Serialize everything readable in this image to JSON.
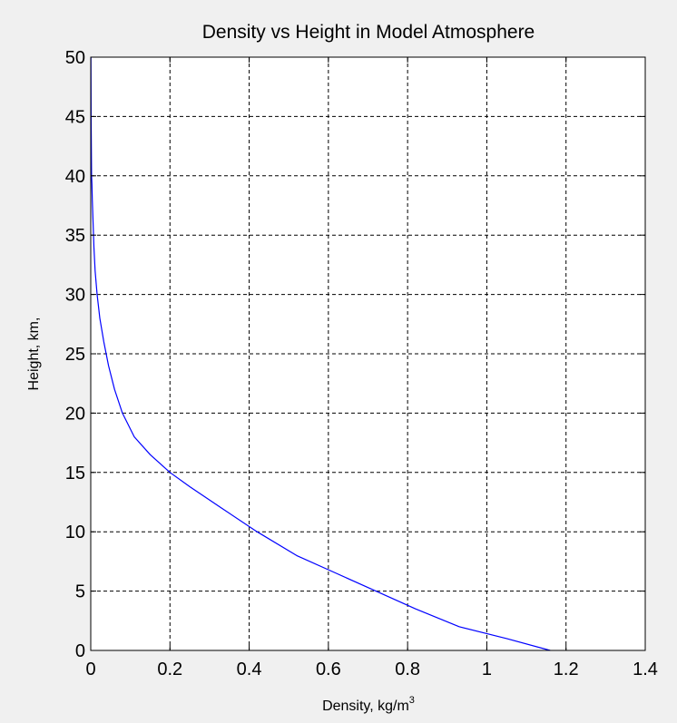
{
  "chart_data": {
    "type": "line",
    "title": "Density vs Height in Model Atmosphere",
    "xlabel_main": "Density, kg/m",
    "xlabel_sup": "3",
    "ylabel": "Height, km,",
    "xlim": [
      0,
      1.4
    ],
    "ylim": [
      0,
      50
    ],
    "xticks": [
      0,
      0.2,
      0.4,
      0.6,
      0.8,
      1,
      1.2,
      1.4
    ],
    "xtick_labels": [
      "0",
      "0.2",
      "0.4",
      "0.6",
      "0.8",
      "1",
      "1.2",
      "1.4"
    ],
    "yticks": [
      0,
      5,
      10,
      15,
      20,
      25,
      30,
      35,
      40,
      45,
      50
    ],
    "ytick_labels": [
      "0",
      "5",
      "10",
      "15",
      "20",
      "25",
      "30",
      "35",
      "40",
      "45",
      "50"
    ],
    "grid": true,
    "series": [
      {
        "color": "#0000ff",
        "x": [
          1.16,
          1.05,
          0.93,
          0.82,
          0.72,
          0.62,
          0.52,
          0.42,
          0.33,
          0.25,
          0.2,
          0.15,
          0.11,
          0.08,
          0.06,
          0.045,
          0.033,
          0.023,
          0.016,
          0.011,
          0.008,
          0.006,
          0.004,
          0.003,
          0.002,
          0.001,
          0.0005
        ],
        "y": [
          0,
          1,
          2,
          3.5,
          5,
          6.5,
          8,
          10,
          12,
          13.8,
          15,
          16.5,
          18,
          20,
          22,
          24,
          26,
          28,
          30,
          32,
          34,
          36,
          38,
          39.3,
          40,
          45,
          50
        ]
      }
    ]
  }
}
